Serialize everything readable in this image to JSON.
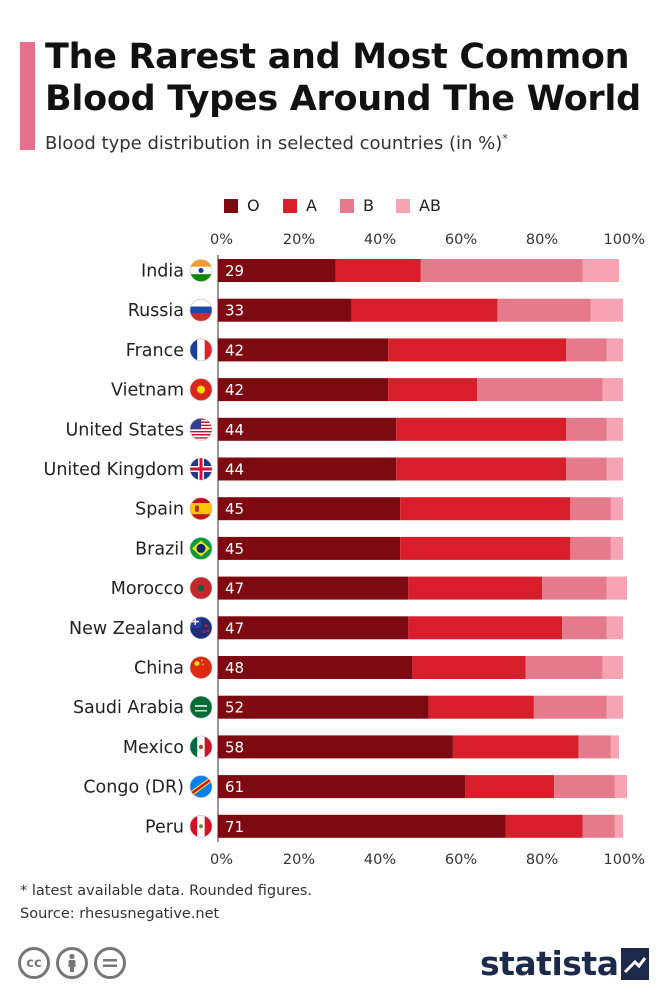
{
  "title_line1": "The Rarest and Most Common",
  "title_line2": "Blood Types Around The World",
  "subtitle": "Blood type distribution in selected countries (in %)",
  "subtitle_mark": "*",
  "footnote": "* latest available data. Rounded figures.",
  "source": "Source: rhesusnegative.net",
  "logo": "statista",
  "colors": {
    "accent": "#e8708a",
    "O": "#7d0a10",
    "A": "#d81e2b",
    "B": "#e57a8d",
    "AB": "#f6a4b2"
  },
  "chart_data": {
    "type": "bar",
    "orientation": "horizontal",
    "stacked": true,
    "title": "The Rarest and Most Common Blood Types Around The World",
    "subtitle": "Blood type distribution in selected countries (in %)",
    "xlim": [
      0,
      100
    ],
    "tick_labels": [
      "0%",
      "20%",
      "40%",
      "60%",
      "80%",
      "100%"
    ],
    "legend_position": "top",
    "data_labels": "O share",
    "categories": [
      "India",
      "Russia",
      "France",
      "Vietnam",
      "United States",
      "United Kingdom",
      "Spain",
      "Brazil",
      "Morocco",
      "New Zealand",
      "China",
      "Saudi Arabia",
      "Mexico",
      "Congo (DR)",
      "Peru"
    ],
    "series": [
      {
        "name": "O",
        "values": [
          29,
          33,
          42,
          42,
          44,
          44,
          45,
          45,
          47,
          47,
          48,
          52,
          58,
          61,
          71
        ]
      },
      {
        "name": "A",
        "values": [
          21,
          36,
          44,
          22,
          42,
          42,
          42,
          42,
          33,
          38,
          28,
          26,
          31,
          22,
          19
        ]
      },
      {
        "name": "B",
        "values": [
          40,
          23,
          10,
          31,
          10,
          10,
          10,
          10,
          16,
          11,
          19,
          18,
          8,
          15,
          8
        ]
      },
      {
        "name": "AB",
        "values": [
          9,
          8,
          4,
          5,
          4,
          4,
          3,
          3,
          5,
          4,
          5,
          4,
          2,
          3,
          2
        ]
      }
    ]
  }
}
